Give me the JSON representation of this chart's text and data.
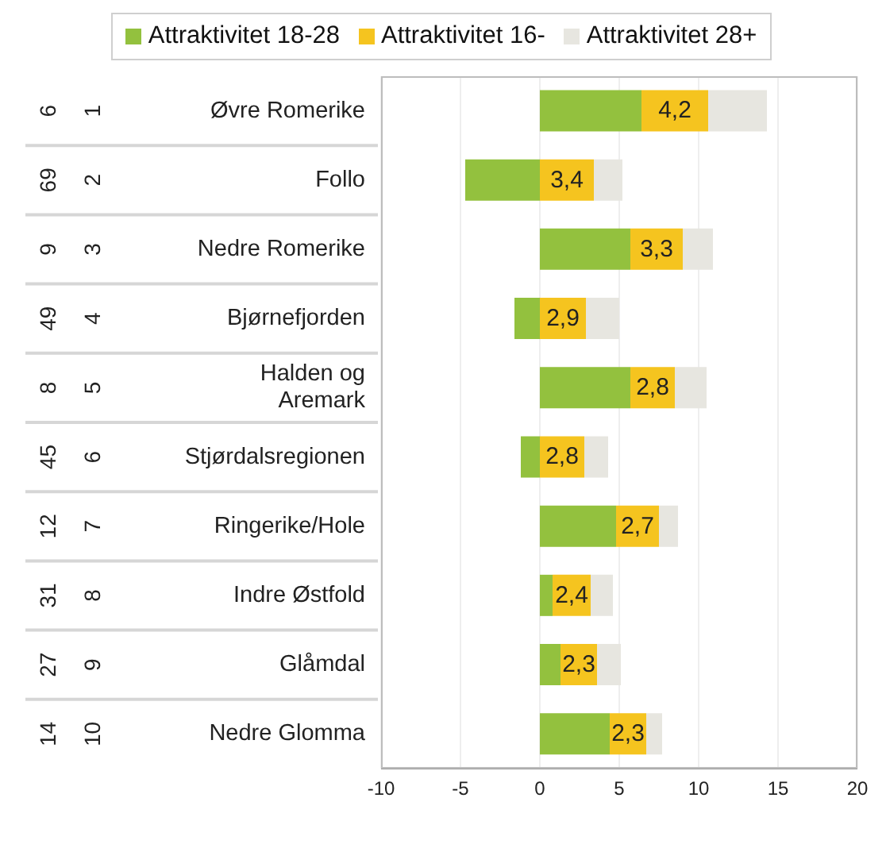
{
  "chart_data": {
    "type": "bar",
    "orientation": "horizontal",
    "stacked": true,
    "categories": [
      "Øvre Romerike",
      "Follo",
      "Nedre Romerike",
      "Bjørnefjorden",
      "Halden og\nAremark",
      "Stjørdalsregionen",
      "Ringerike/Hole",
      "Indre Østfold",
      "Glåmdal",
      "Nedre Glomma"
    ],
    "series": [
      {
        "name": "Attraktivitet 18-28",
        "color": "#93c13e",
        "values": [
          6.4,
          -4.7,
          5.7,
          -1.6,
          5.7,
          -1.2,
          4.8,
          0.8,
          1.3,
          4.4
        ]
      },
      {
        "name": "Attraktivitet 16-",
        "color": "#f5c41f",
        "values": [
          4.2,
          3.4,
          3.3,
          2.9,
          2.8,
          2.8,
          2.7,
          2.4,
          2.3,
          2.3
        ],
        "value_labels": [
          "4,2",
          "3,4",
          "3,3",
          "2,9",
          "2,8",
          "2,8",
          "2,7",
          "2,4",
          "2,3",
          "2,3"
        ]
      },
      {
        "name": "Attraktivitet 28+",
        "color": "#e7e6e0",
        "values": [
          3.7,
          1.8,
          1.9,
          2.1,
          2.0,
          1.5,
          1.2,
          1.4,
          1.5,
          1.0
        ]
      }
    ],
    "xlim": [
      -10,
      20
    ],
    "xticks": [
      -10,
      -5,
      0,
      5,
      10,
      15,
      20
    ],
    "grid": "x",
    "legend": "top",
    "annotations": [
      "6",
      "69",
      "9",
      "49",
      "8",
      "45",
      "12",
      "31",
      "27",
      "14",
      "1",
      "2",
      "3",
      "4",
      "5",
      "6",
      "7",
      "8",
      "9",
      "10"
    ]
  }
}
